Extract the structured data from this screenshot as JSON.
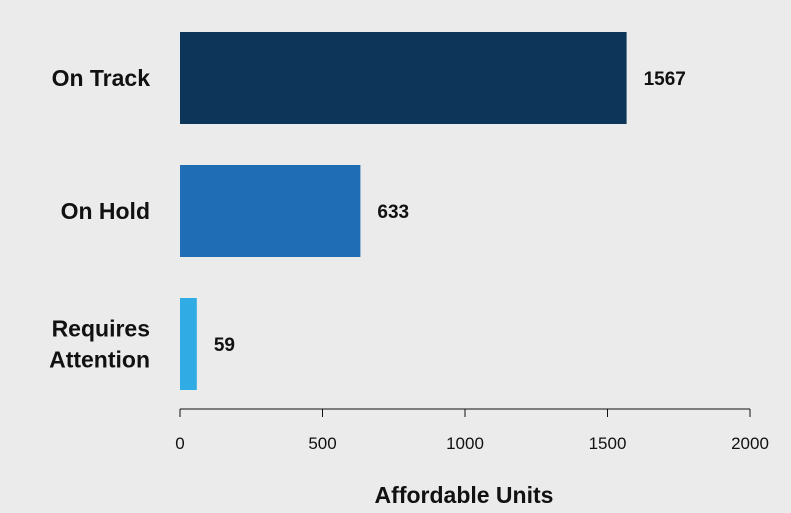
{
  "chart_data": {
    "type": "bar",
    "orientation": "horizontal",
    "categories": [
      "On Track",
      "On Hold",
      "Requires Attention"
    ],
    "category_lines": [
      [
        "On Track"
      ],
      [
        "On Hold"
      ],
      [
        "Requires",
        "Attention"
      ]
    ],
    "values": [
      1567,
      633,
      59
    ],
    "value_labels": [
      "1567",
      "633",
      "59"
    ],
    "colors": [
      "#0d3459",
      "#1f6db5",
      "#30abe3"
    ],
    "xlabel": "Affordable Units",
    "ylabel": "",
    "xlim": [
      0,
      2000
    ],
    "xticks": [
      0,
      500,
      1000,
      1500,
      2000
    ],
    "xtick_labels": [
      "0",
      "500",
      "1000",
      "1500",
      "2000"
    ],
    "grid": false,
    "legend": "none"
  }
}
